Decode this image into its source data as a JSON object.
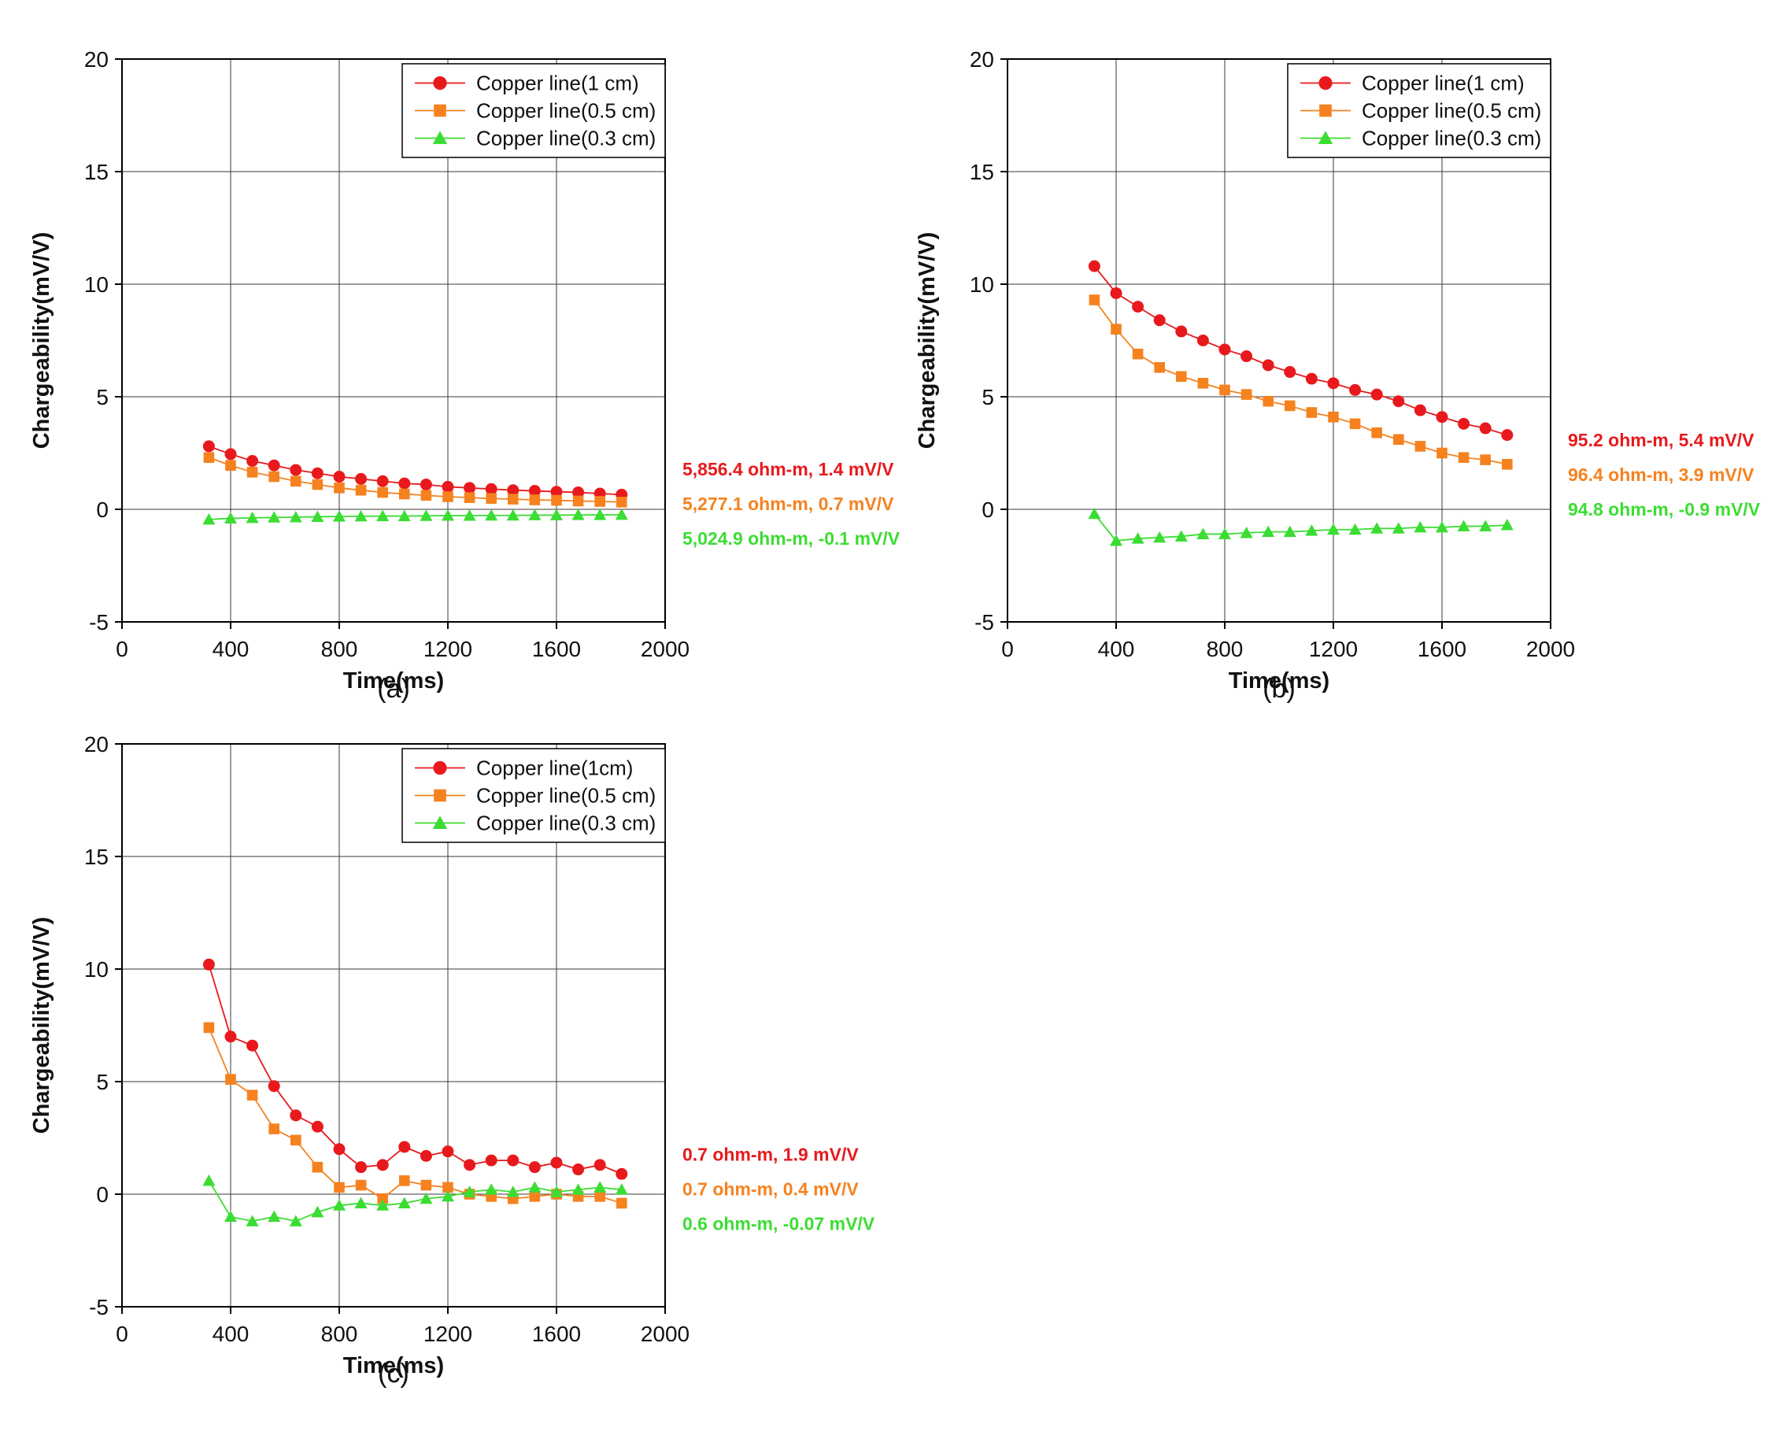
{
  "page": {
    "background": "#ffffff"
  },
  "colors": {
    "red": "#e8191c",
    "orange": "#f5821f",
    "green": "#3bdd33",
    "grid": "#3a3a3a",
    "axis": "#000000",
    "text": "#111111"
  },
  "chart_data": [
    {
      "id": "a",
      "type": "line",
      "caption": "(a)",
      "xlabel": "Time(ms)",
      "ylabel": "Chargeability(mV/V)",
      "xlim": [
        0,
        2000
      ],
      "ylim": [
        -5,
        20
      ],
      "xticks": [
        0,
        400,
        800,
        1200,
        1600,
        2000
      ],
      "yticks": [
        -5,
        0,
        5,
        10,
        15,
        20
      ],
      "grid": true,
      "legend_position": "top-right",
      "x": [
        320,
        400,
        480,
        560,
        640,
        720,
        800,
        880,
        960,
        1040,
        1120,
        1200,
        1280,
        1360,
        1440,
        1520,
        1600,
        1680,
        1760,
        1840
      ],
      "series": [
        {
          "name": "Copper line(1 cm)",
          "marker": "circle",
          "color": "#e8191c",
          "values": [
            2.8,
            2.45,
            2.15,
            1.95,
            1.75,
            1.6,
            1.45,
            1.35,
            1.25,
            1.15,
            1.1,
            1.0,
            0.95,
            0.9,
            0.85,
            0.82,
            0.78,
            0.75,
            0.7,
            0.65
          ]
        },
        {
          "name": "Copper line(0.5 cm)",
          "marker": "square",
          "color": "#f5821f",
          "values": [
            2.3,
            1.95,
            1.65,
            1.45,
            1.25,
            1.1,
            0.95,
            0.85,
            0.75,
            0.68,
            0.62,
            0.56,
            0.52,
            0.48,
            0.45,
            0.42,
            0.4,
            0.37,
            0.35,
            0.32
          ]
        },
        {
          "name": "Copper line(0.3 cm)",
          "marker": "triangle",
          "color": "#3bdd33",
          "values": [
            -0.45,
            -0.4,
            -0.38,
            -0.36,
            -0.35,
            -0.33,
            -0.32,
            -0.31,
            -0.3,
            -0.3,
            -0.29,
            -0.28,
            -0.28,
            -0.27,
            -0.27,
            -0.26,
            -0.26,
            -0.25,
            -0.25,
            -0.24
          ]
        }
      ],
      "annotations": [
        {
          "text": "5,856.4 ohm-m, 1.4 mV/V",
          "color": "#e8191c"
        },
        {
          "text": "5,277.1 ohm-m, 0.7 mV/V",
          "color": "#f5821f"
        },
        {
          "text": "5,024.9 ohm-m, -0.1 mV/V",
          "color": "#3bdd33"
        }
      ]
    },
    {
      "id": "b",
      "type": "line",
      "caption": "(b)",
      "xlabel": "Time(ms)",
      "ylabel": "Chargeability(mV/V)",
      "xlim": [
        0,
        2000
      ],
      "ylim": [
        -5,
        20
      ],
      "xticks": [
        0,
        400,
        800,
        1200,
        1600,
        2000
      ],
      "yticks": [
        -5,
        0,
        5,
        10,
        15,
        20
      ],
      "grid": true,
      "legend_position": "top-right",
      "x": [
        320,
        400,
        480,
        560,
        640,
        720,
        800,
        880,
        960,
        1040,
        1120,
        1200,
        1280,
        1360,
        1440,
        1520,
        1600,
        1680,
        1760,
        1840
      ],
      "series": [
        {
          "name": "Copper line(1 cm)",
          "marker": "circle",
          "color": "#e8191c",
          "values": [
            10.8,
            9.6,
            9.0,
            8.4,
            7.9,
            7.5,
            7.1,
            6.8,
            6.4,
            6.1,
            5.8,
            5.6,
            5.3,
            5.1,
            4.8,
            4.4,
            4.1,
            3.8,
            3.6,
            3.3
          ]
        },
        {
          "name": "Copper line(0.5 cm)",
          "marker": "square",
          "color": "#f5821f",
          "values": [
            9.3,
            8.0,
            6.9,
            6.3,
            5.9,
            5.6,
            5.3,
            5.1,
            4.8,
            4.6,
            4.3,
            4.1,
            3.8,
            3.4,
            3.1,
            2.8,
            2.5,
            2.3,
            2.2,
            2.0
          ]
        },
        {
          "name": "Copper line(0.3 cm)",
          "marker": "triangle",
          "color": "#3bdd33",
          "values": [
            -0.2,
            -1.4,
            -1.3,
            -1.25,
            -1.2,
            -1.1,
            -1.1,
            -1.05,
            -1.0,
            -1.0,
            -0.95,
            -0.9,
            -0.9,
            -0.85,
            -0.85,
            -0.8,
            -0.8,
            -0.75,
            -0.75,
            -0.7
          ]
        }
      ],
      "annotations": [
        {
          "text": "95.2 ohm-m, 5.4 mV/V",
          "color": "#e8191c"
        },
        {
          "text": "96.4 ohm-m, 3.9 mV/V",
          "color": "#f5821f"
        },
        {
          "text": "94.8 ohm-m, -0.9 mV/V",
          "color": "#3bdd33"
        }
      ]
    },
    {
      "id": "c",
      "type": "line",
      "caption": "(c)",
      "xlabel": "Time(ms)",
      "ylabel": "Chargeability(mV/V)",
      "xlim": [
        0,
        2000
      ],
      "ylim": [
        -5,
        20
      ],
      "xticks": [
        0,
        400,
        800,
        1200,
        1600,
        2000
      ],
      "yticks": [
        -5,
        0,
        5,
        10,
        15,
        20
      ],
      "grid": true,
      "legend_position": "top-right",
      "x": [
        320,
        400,
        480,
        560,
        640,
        720,
        800,
        880,
        960,
        1040,
        1120,
        1200,
        1280,
        1360,
        1440,
        1520,
        1600,
        1680,
        1760,
        1840
      ],
      "series": [
        {
          "name": "Copper line(1cm)",
          "marker": "circle",
          "color": "#e8191c",
          "values": [
            10.2,
            7.0,
            6.6,
            4.8,
            3.5,
            3.0,
            2.0,
            1.2,
            1.3,
            2.1,
            1.7,
            1.9,
            1.3,
            1.5,
            1.5,
            1.2,
            1.4,
            1.1,
            1.3,
            0.9
          ]
        },
        {
          "name": "Copper line(0.5 cm)",
          "marker": "square",
          "color": "#f5821f",
          "values": [
            7.4,
            5.1,
            4.4,
            2.9,
            2.4,
            1.2,
            0.3,
            0.4,
            -0.2,
            0.6,
            0.4,
            0.3,
            0.0,
            -0.1,
            -0.2,
            -0.1,
            0.0,
            -0.1,
            -0.1,
            -0.4
          ]
        },
        {
          "name": "Copper line(0.3 cm)",
          "marker": "triangle",
          "color": "#3bdd33",
          "values": [
            0.6,
            -1.0,
            -1.2,
            -1.0,
            -1.2,
            -0.8,
            -0.5,
            -0.4,
            -0.5,
            -0.4,
            -0.2,
            -0.1,
            0.1,
            0.2,
            0.1,
            0.3,
            0.1,
            0.2,
            0.3,
            0.2
          ]
        }
      ],
      "annotations": [
        {
          "text": "0.7 ohm-m, 1.9 mV/V",
          "color": "#e8191c"
        },
        {
          "text": "0.7 ohm-m, 0.4 mV/V",
          "color": "#f5821f"
        },
        {
          "text": "0.6 ohm-m, -0.07 mV/V",
          "color": "#3bdd33"
        }
      ]
    }
  ]
}
